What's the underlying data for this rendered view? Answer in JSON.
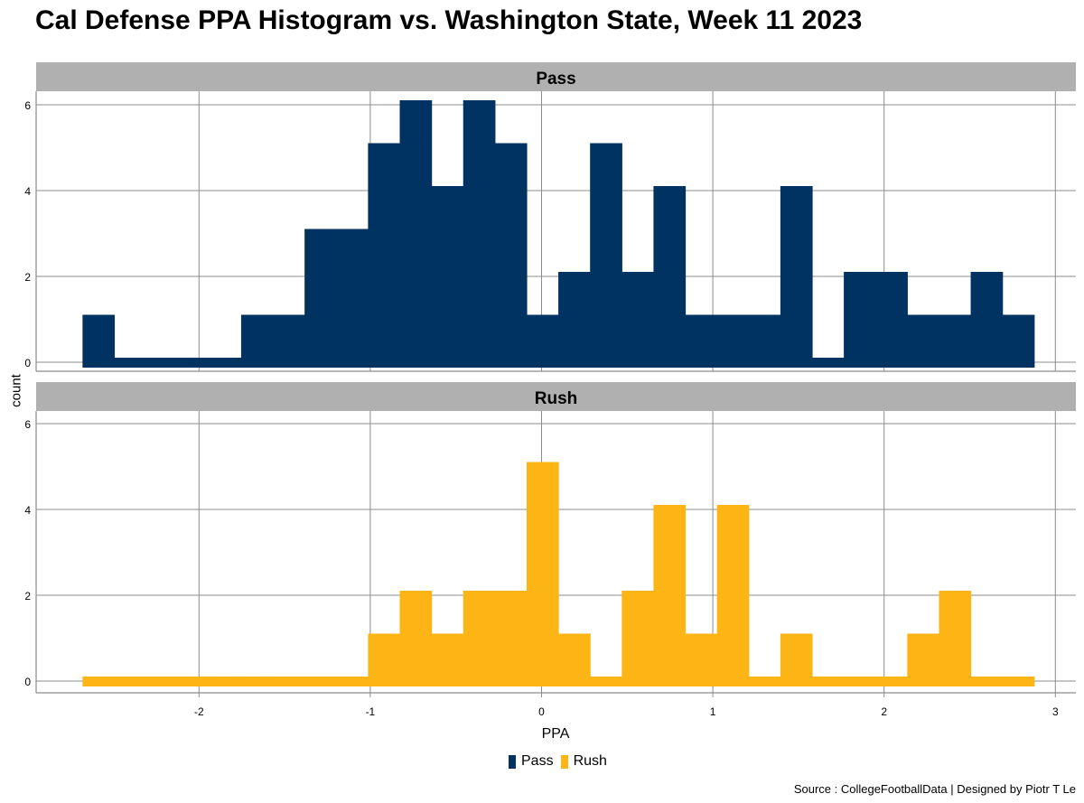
{
  "title": "Cal Defense PPA Histogram vs. Washington State, Week 11 2023",
  "caption": "Source : CollegeFootballData | Designed by Piotr T Le",
  "colors": {
    "pass": "#003262",
    "rush": "#FDB515",
    "strip": "#B0B0B0",
    "grid": "#8C8C8C"
  },
  "legend": [
    {
      "label": "Pass",
      "color": "#003262"
    },
    {
      "label": "Rush",
      "color": "#FDB515"
    }
  ],
  "chart_data": {
    "type": "bar",
    "subtype": "histogram (faceted)",
    "title": "Cal Defense PPA Histogram vs. Washington State, Week 11 2023",
    "xlabel": "PPA",
    "ylabel": "count",
    "xlim": [
      -2.95,
      3.12
    ],
    "ylim": [
      -0.35,
      6.3
    ],
    "x_ticks": [
      -2,
      -1,
      0,
      1,
      2,
      3
    ],
    "y_ticks": [
      0,
      2,
      4,
      6
    ],
    "grid": true,
    "legend_position": "bottom",
    "bins": {
      "count": 30,
      "start": -2.68,
      "width": 0.1852
    },
    "series": [
      {
        "name": "Pass",
        "values": [
          1,
          0,
          0,
          0,
          0,
          1,
          1,
          3,
          3,
          5,
          6,
          4,
          6,
          5,
          1,
          2,
          5,
          2,
          4,
          1,
          1,
          1,
          4,
          0,
          2,
          2,
          1,
          1,
          2,
          1
        ]
      },
      {
        "name": "Rush",
        "values": [
          0,
          0,
          0,
          0,
          0,
          0,
          0,
          0,
          0,
          1,
          2,
          1,
          2,
          2,
          5,
          1,
          0,
          2,
          4,
          1,
          4,
          0,
          1,
          0,
          0,
          0,
          1,
          2,
          0,
          0
        ]
      }
    ],
    "facets": [
      "Pass",
      "Rush"
    ]
  }
}
